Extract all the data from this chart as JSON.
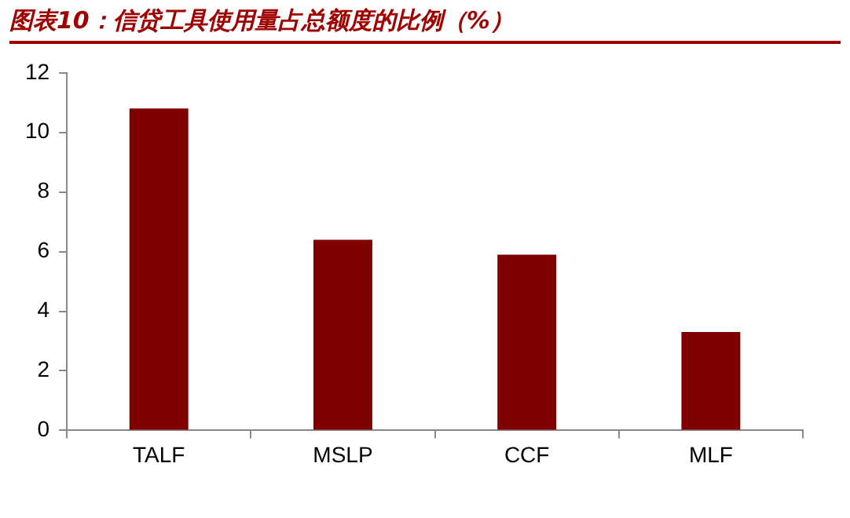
{
  "chart_data": {
    "type": "bar",
    "title": "图表10：信贷工具使用量占总额度的比例（%）",
    "categories": [
      "TALF",
      "MSLP",
      "CCF",
      "MLF"
    ],
    "series": [
      {
        "color": "#800000",
        "values": [
          10.8,
          6.4,
          5.9,
          3.3
        ]
      }
    ],
    "ylim": [
      0,
      12
    ],
    "yticks": [
      0,
      2,
      4,
      6,
      8,
      10,
      12
    ],
    "grid": false,
    "legend": false
  }
}
